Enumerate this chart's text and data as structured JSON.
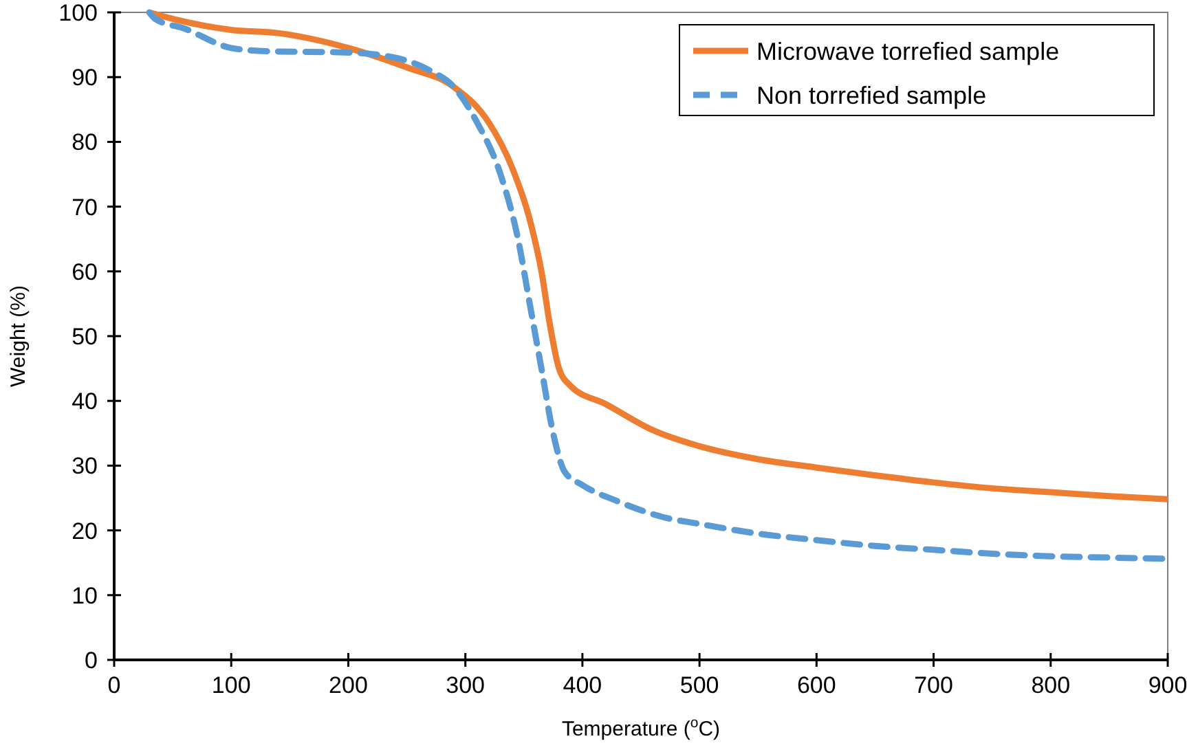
{
  "chart_data": {
    "type": "line",
    "xlabel": "Temperature ($^{o}$C)",
    "ylabel": "Weight (%)",
    "xlim": [
      0,
      900
    ],
    "ylim": [
      0,
      100
    ],
    "xticks": [
      0,
      100,
      200,
      300,
      400,
      500,
      600,
      700,
      800,
      900
    ],
    "yticks": [
      0,
      10,
      20,
      30,
      40,
      50,
      60,
      70,
      80,
      90,
      100
    ],
    "grid": false,
    "legend": "top right",
    "marker": "none",
    "series": [
      {
        "name": "Microwave torrefied sample",
        "color": "#ed7d31",
        "line_style": "solid",
        "x": [
          30,
          50,
          100,
          140,
          200,
          250,
          290,
          320,
          340,
          355,
          365,
          372,
          380,
          390,
          420,
          460,
          500,
          550,
          600,
          650,
          700,
          750,
          800,
          850,
          900
        ],
        "values": [
          100,
          99,
          97.3,
          96.8,
          94.5,
          91.5,
          88.5,
          83,
          76,
          68,
          60,
          52,
          45,
          42.3,
          39.5,
          35.5,
          33,
          31,
          29.7,
          28.5,
          27.4,
          26.5,
          25.9,
          25.3,
          24.8
        ]
      },
      {
        "name": "Non torrefied sample",
        "color": "#5b9bd5",
        "line_style": "dashed",
        "x": [
          30,
          35,
          60,
          100,
          130,
          200,
          240,
          270,
          290,
          310,
          330,
          345,
          355,
          365,
          375,
          385,
          400,
          430,
          470,
          500,
          550,
          600,
          650,
          700,
          750,
          800,
          850,
          900
        ],
        "values": [
          100,
          99,
          97.5,
          94.5,
          94,
          93.8,
          93,
          91,
          88.5,
          83,
          75,
          65,
          55,
          45,
          35,
          29,
          27,
          24.5,
          22,
          21,
          19.5,
          18.5,
          17.6,
          17,
          16.4,
          16,
          15.8,
          15.6
        ]
      }
    ]
  }
}
